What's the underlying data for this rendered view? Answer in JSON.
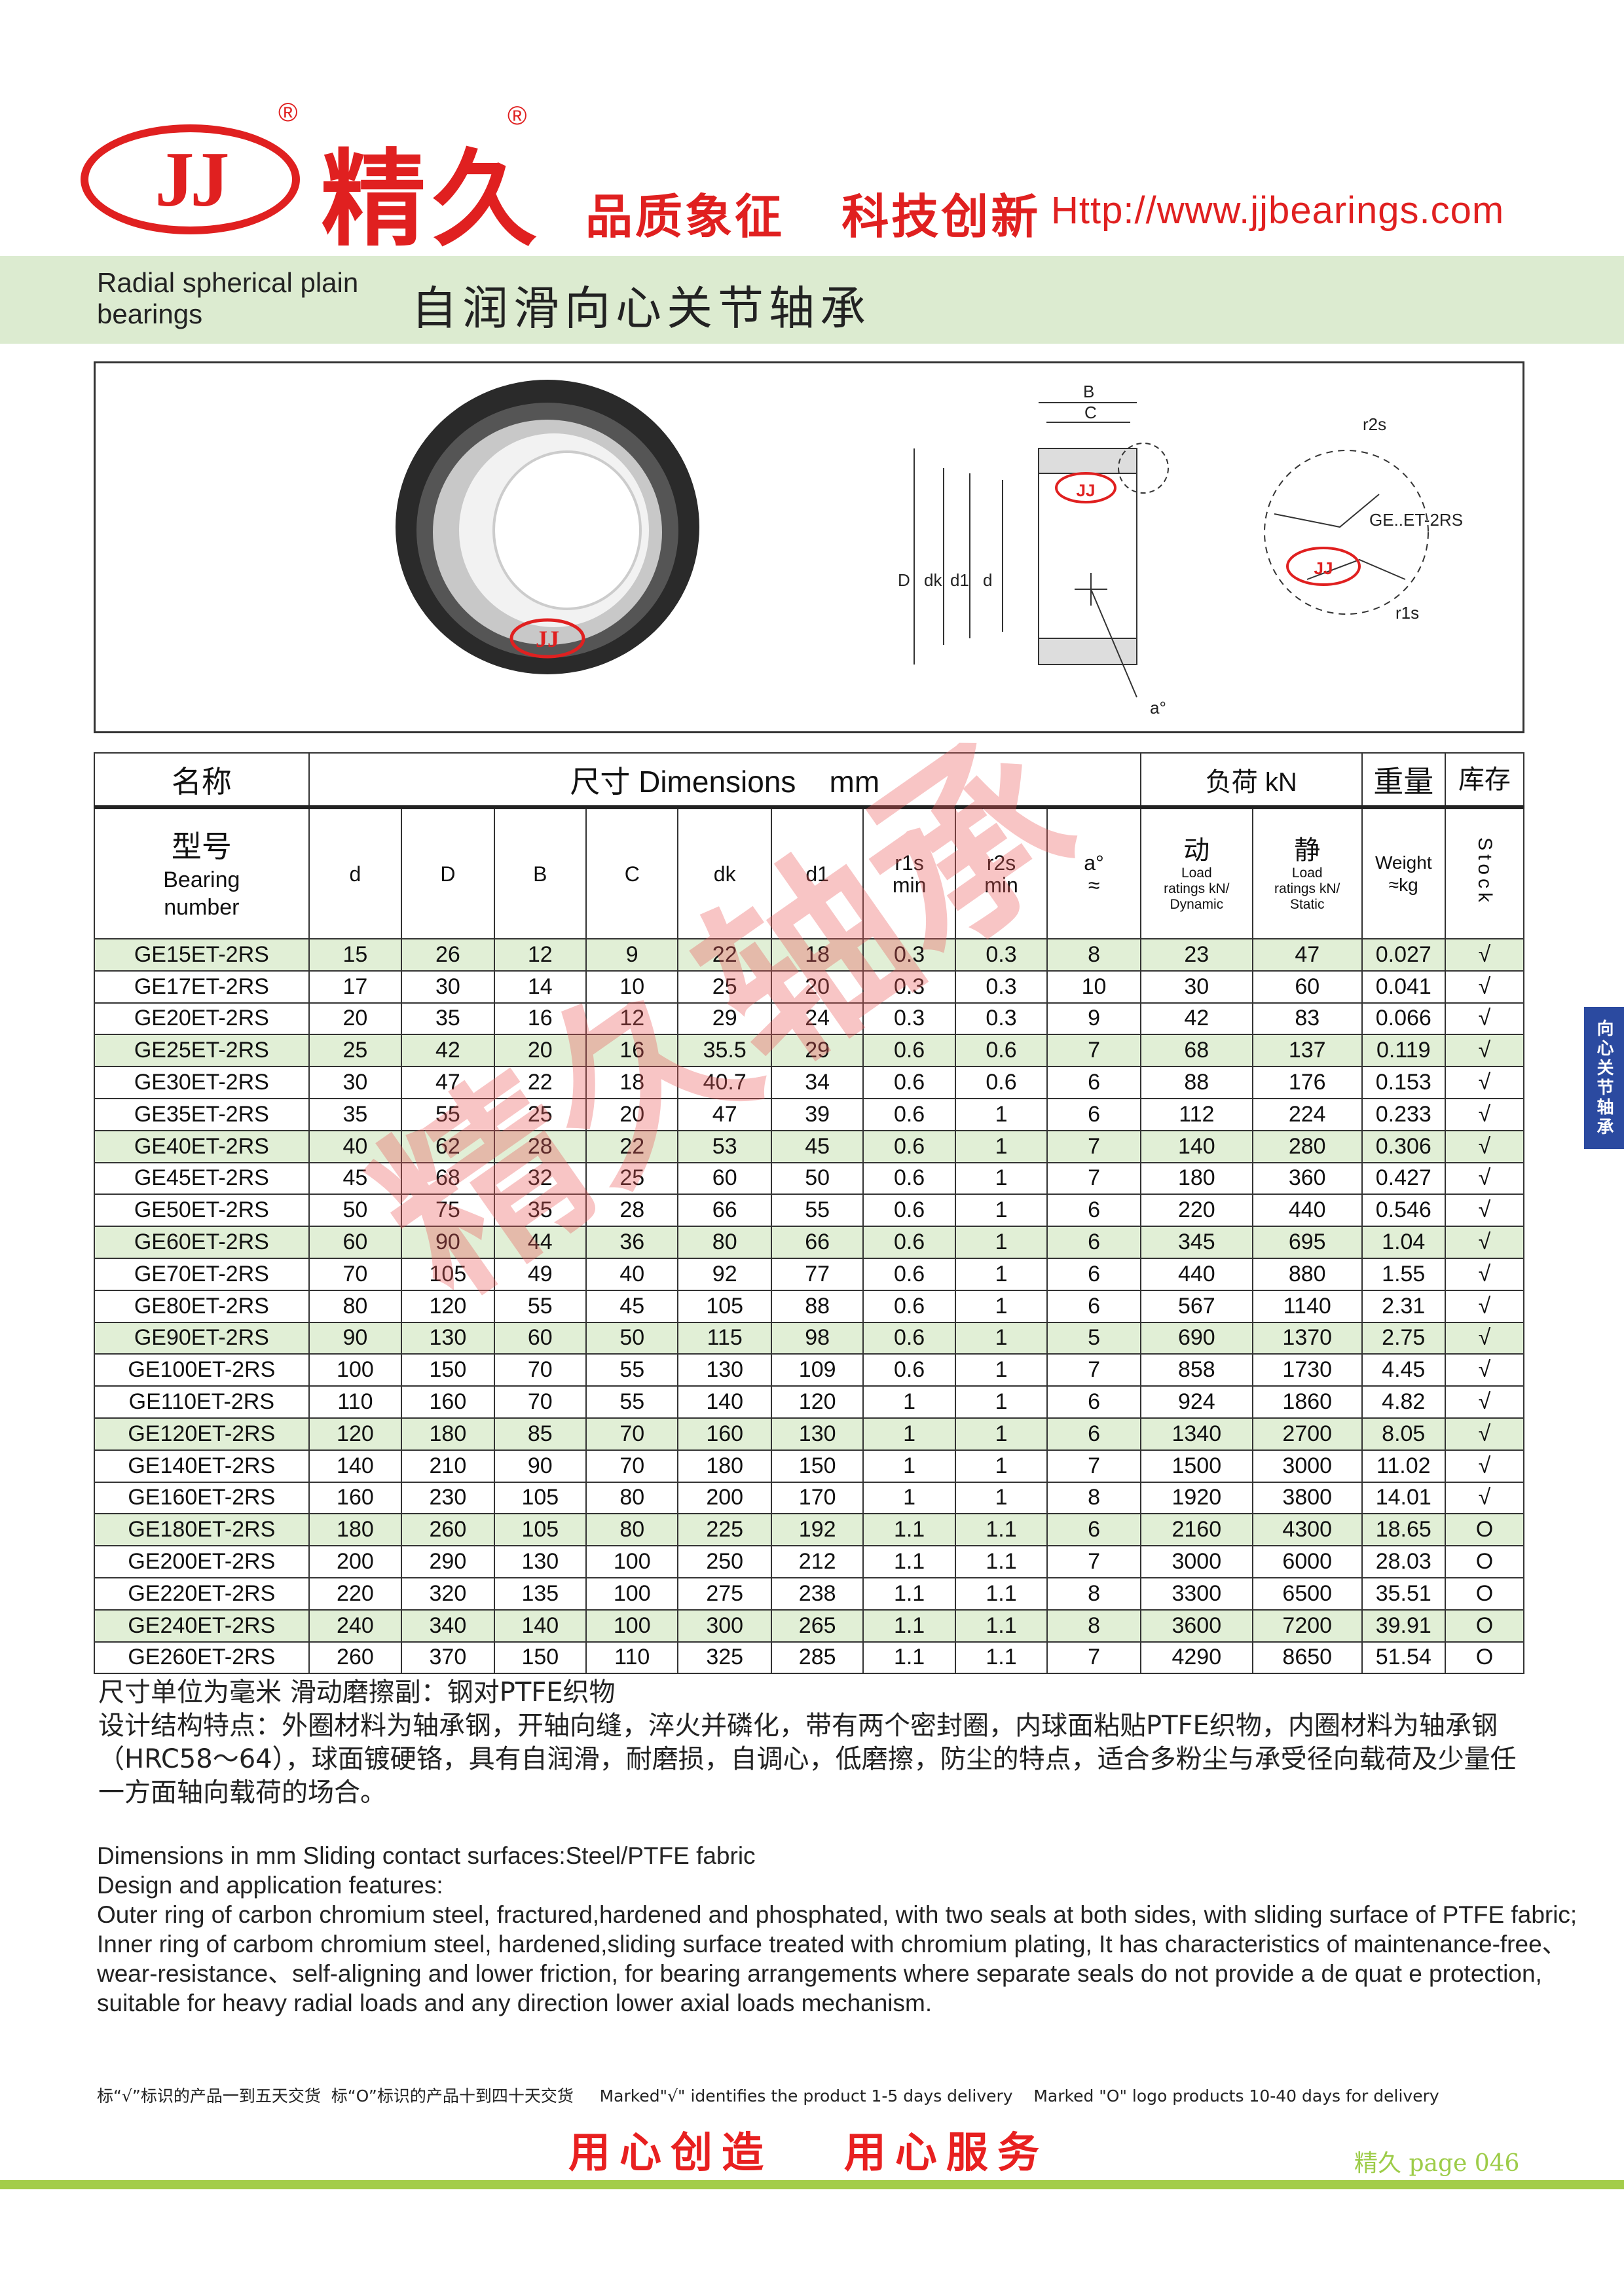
{
  "header": {
    "logo_text": "JJ",
    "brand_cn": "精久",
    "registered_mark": "®",
    "slogan": "品质象征   科技创新",
    "url": "Http://www.jjbearings.com",
    "brand_color": "#e02020"
  },
  "title": {
    "en": "Radial spherical plain bearings",
    "cn": "自润滑向心关节轴承"
  },
  "side_tab": "向心关节轴承",
  "figure": {
    "photo_logo": "JJ",
    "drawing_labels": {
      "B": "B",
      "C": "C",
      "D": "D",
      "dk": "dk",
      "d1": "d1",
      "d": "d",
      "a": "a°",
      "r2s": "r2s",
      "r1s": "r1s",
      "series": "GE..ET-2RS",
      "logo": "JJ"
    }
  },
  "table": {
    "header_row1": {
      "name": "名称",
      "dimensions": "尺寸 Dimensions    mm",
      "load": "负荷 kN",
      "weight": "重量",
      "stock": "库存"
    },
    "header_row2": {
      "model_cn": "型号",
      "model_en": "Bearing number",
      "cols": [
        "d",
        "D",
        "B",
        "C",
        "dk",
        "d1",
        "r1s min",
        "r2s min",
        "a° ≈"
      ],
      "dynamic_cn": "动",
      "dynamic_en": "Load ratings kN/ Dynamic",
      "static_cn": "静",
      "static_en": "Load ratings kN/ Static",
      "weight_en": "Weight ≈kg",
      "stock_en": "Stock"
    },
    "rows": [
      [
        "GE15ET-2RS",
        "15",
        "26",
        "12",
        "9",
        "22",
        "18",
        "0.3",
        "0.3",
        "8",
        "23",
        "47",
        "0.027",
        "√"
      ],
      [
        "GE17ET-2RS",
        "17",
        "30",
        "14",
        "10",
        "25",
        "20",
        "0.3",
        "0.3",
        "10",
        "30",
        "60",
        "0.041",
        "√"
      ],
      [
        "GE20ET-2RS",
        "20",
        "35",
        "16",
        "12",
        "29",
        "24",
        "0.3",
        "0.3",
        "9",
        "42",
        "83",
        "0.066",
        "√"
      ],
      [
        "GE25ET-2RS",
        "25",
        "42",
        "20",
        "16",
        "35.5",
        "29",
        "0.6",
        "0.6",
        "7",
        "68",
        "137",
        "0.119",
        "√"
      ],
      [
        "GE30ET-2RS",
        "30",
        "47",
        "22",
        "18",
        "40.7",
        "34",
        "0.6",
        "0.6",
        "6",
        "88",
        "176",
        "0.153",
        "√"
      ],
      [
        "GE35ET-2RS",
        "35",
        "55",
        "25",
        "20",
        "47",
        "39",
        "0.6",
        "1",
        "6",
        "112",
        "224",
        "0.233",
        "√"
      ],
      [
        "GE40ET-2RS",
        "40",
        "62",
        "28",
        "22",
        "53",
        "45",
        "0.6",
        "1",
        "7",
        "140",
        "280",
        "0.306",
        "√"
      ],
      [
        "GE45ET-2RS",
        "45",
        "68",
        "32",
        "25",
        "60",
        "50",
        "0.6",
        "1",
        "7",
        "180",
        "360",
        "0.427",
        "√"
      ],
      [
        "GE50ET-2RS",
        "50",
        "75",
        "35",
        "28",
        "66",
        "55",
        "0.6",
        "1",
        "6",
        "220",
        "440",
        "0.546",
        "√"
      ],
      [
        "GE60ET-2RS",
        "60",
        "90",
        "44",
        "36",
        "80",
        "66",
        "0.6",
        "1",
        "6",
        "345",
        "695",
        "1.04",
        "√"
      ],
      [
        "GE70ET-2RS",
        "70",
        "105",
        "49",
        "40",
        "92",
        "77",
        "0.6",
        "1",
        "6",
        "440",
        "880",
        "1.55",
        "√"
      ],
      [
        "GE80ET-2RS",
        "80",
        "120",
        "55",
        "45",
        "105",
        "88",
        "0.6",
        "1",
        "6",
        "567",
        "1140",
        "2.31",
        "√"
      ],
      [
        "GE90ET-2RS",
        "90",
        "130",
        "60",
        "50",
        "115",
        "98",
        "0.6",
        "1",
        "5",
        "690",
        "1370",
        "2.75",
        "√"
      ],
      [
        "GE100ET-2RS",
        "100",
        "150",
        "70",
        "55",
        "130",
        "109",
        "0.6",
        "1",
        "7",
        "858",
        "1730",
        "4.45",
        "√"
      ],
      [
        "GE110ET-2RS",
        "110",
        "160",
        "70",
        "55",
        "140",
        "120",
        "1",
        "1",
        "6",
        "924",
        "1860",
        "4.82",
        "√"
      ],
      [
        "GE120ET-2RS",
        "120",
        "180",
        "85",
        "70",
        "160",
        "130",
        "1",
        "1",
        "6",
        "1340",
        "2700",
        "8.05",
        "√"
      ],
      [
        "GE140ET-2RS",
        "140",
        "210",
        "90",
        "70",
        "180",
        "150",
        "1",
        "1",
        "7",
        "1500",
        "3000",
        "11.02",
        "√"
      ],
      [
        "GE160ET-2RS",
        "160",
        "230",
        "105",
        "80",
        "200",
        "170",
        "1",
        "1",
        "8",
        "1920",
        "3800",
        "14.01",
        "√"
      ],
      [
        "GE180ET-2RS",
        "180",
        "260",
        "105",
        "80",
        "225",
        "192",
        "1.1",
        "1.1",
        "6",
        "2160",
        "4300",
        "18.65",
        "O"
      ],
      [
        "GE200ET-2RS",
        "200",
        "290",
        "130",
        "100",
        "250",
        "212",
        "1.1",
        "1.1",
        "7",
        "3000",
        "6000",
        "28.03",
        "O"
      ],
      [
        "GE220ET-2RS",
        "220",
        "320",
        "135",
        "100",
        "275",
        "238",
        "1.1",
        "1.1",
        "8",
        "3300",
        "6500",
        "35.51",
        "O"
      ],
      [
        "GE240ET-2RS",
        "240",
        "340",
        "140",
        "100",
        "300",
        "265",
        "1.1",
        "1.1",
        "8",
        "3600",
        "7200",
        "39.91",
        "O"
      ],
      [
        "GE260ET-2RS",
        "260",
        "370",
        "150",
        "110",
        "325",
        "285",
        "1.1",
        "1.1",
        "7",
        "4290",
        "8650",
        "51.54",
        "O"
      ]
    ],
    "row_highlight_color": "#e1efd6"
  },
  "watermark": "精久轴承",
  "notes_cn": {
    "line1": "尺寸单位为毫米 滑动磨擦副：钢对PTFE织物",
    "line2": "设计结构特点：外圈材料为轴承钢，开轴向缝，淬火并磷化，带有两个密封圈，内球面粘贴PTFE织物，内圈材料为轴承钢（HRC58～64），球面镀硬铬，具有自润滑，耐磨损，自调心，低磨擦，防尘的特点，适合多粉尘与承受径向载荷及少量任一方面轴向载荷的场合。"
  },
  "notes_en": {
    "line1": "Dimensions in mm Sliding contact surfaces:Steel/PTFE fabric",
    "line2": "Design and application features:",
    "line3": "Outer ring of carbon chromium steel, fractured,hardened and phosphated, with two seals at both sides, with sliding surface of PTFE fabric; Inner ring of carbom chromium steel, hardened,sliding surface treated with chromium plating, It has characteristics of maintenance-free、wear-resistance、self-aligning and lower friction, for bearing arrangements where separate seals do not provide a de quat e protection, suitable for heavy radial loads and any direction lower axial loads mechanism."
  },
  "footer": {
    "delivery": "标“√”标识的产品一到五天交货  标“O”标识的产品十到四十天交货     Marked\"√\" identifies the product 1-5 days delivery    Marked \"O\" logo products 10-40 days for delivery",
    "slogan": "用心创造   用心服务",
    "page": "精久 page 046",
    "accent": "#a3cd4a"
  }
}
